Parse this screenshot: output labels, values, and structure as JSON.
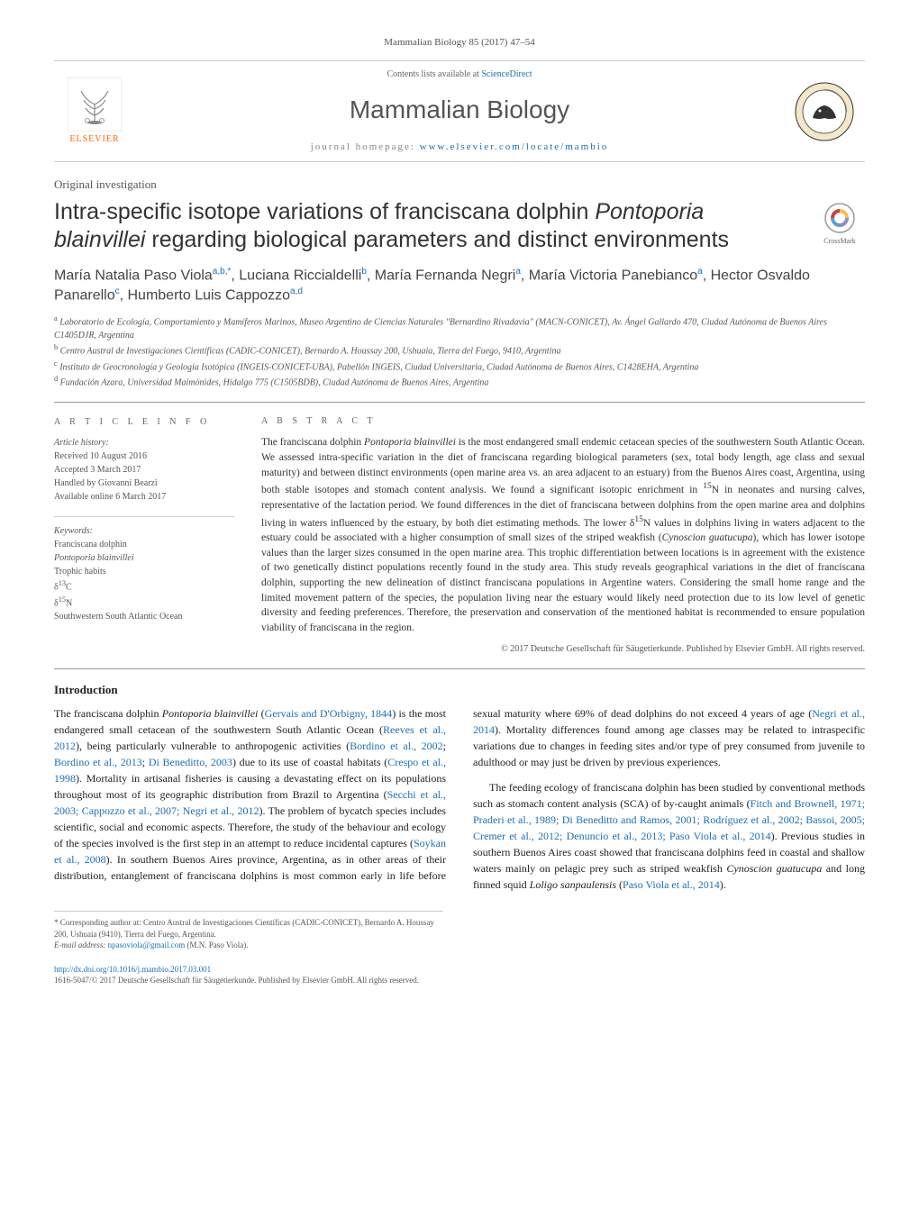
{
  "header": {
    "citation": "Mammalian Biology 85 (2017) 47–54",
    "contents_prefix": "Contents lists available at ",
    "contents_link": "ScienceDirect",
    "journal_name": "Mammalian Biology",
    "homepage_prefix": "journal homepage: ",
    "homepage_link": "www.elsevier.com/locate/mambio",
    "publisher_label": "ELSEVIER"
  },
  "article": {
    "type": "Original investigation",
    "title_html": "Intra-specific isotope variations of franciscana dolphin <em>Pontoporia blainvillei</em> regarding biological parameters and distinct environments",
    "crossmark_label": "CrossMark"
  },
  "authors_html": "María Natalia Paso Viola<sup>a,b,*</sup>, Luciana Riccialdelli<sup>b</sup>, María Fernanda Negri<sup>a</sup>, María Victoria Panebianco<sup>a</sup>, Hector Osvaldo Panarello<sup>c</sup>, Humberto Luis Cappozzo<sup>a,d</sup>",
  "affiliations": [
    "<sup>a</sup> Laboratorio de Ecología, Comportamiento y Mamíferos Marinos, Museo Argentino de Ciencias Naturales \"Bernardino Rivadavia\" (MACN-CONICET), Av. Ángel Gallardo 470, Ciudad Autónoma de Buenos Aires C1405DJR, Argentina",
    "<sup>b</sup> Centro Austral de Investigaciones Científicas (CADIC-CONICET), Bernardo A. Houssay 200, Ushuaia, Tierra del Fuego, 9410, Argentina",
    "<sup>c</sup> Instituto de Geocronología y Geología Isotópica (INGEIS-CONICET-UBA), Pabellón INGEIS, Ciudad Universitaria, Ciudad Autónoma de Buenos Aires, C1428EHA, Argentina",
    "<sup>d</sup> Fundación Azara, Universidad Maimónides, Hidalgo 775 (C1505BDB), Ciudad Autónoma de Buenos Aires, Argentina"
  ],
  "article_info": {
    "heading": "a r t i c l e   i n f o",
    "history_label": "Article history:",
    "history": [
      "Received 10 August 2016",
      "Accepted 3 March 2017",
      "Handled by Giovanni Bearzi",
      "Available online 6 March 2017"
    ],
    "keywords_label": "Keywords:",
    "keywords": [
      "Franciscana dolphin",
      "Pontoporia blainvillei",
      "Trophic habits",
      "δ13C",
      "δ15N",
      "Southwestern South Atlantic Ocean"
    ]
  },
  "abstract": {
    "heading": "a b s t r a c t",
    "text_html": "The franciscana dolphin <em>Pontoporia blainvillei</em> is the most endangered small endemic cetacean species of the southwestern South Atlantic Ocean. We assessed intra-specific variation in the diet of franciscana regarding biological parameters (sex, total body length, age class and sexual maturity) and between distinct environments (open marine area vs. an area adjacent to an estuary) from the Buenos Aires coast, Argentina, using both stable isotopes and stomach content analysis. We found a significant isotopic enrichment in <sup>15</sup>N in neonates and nursing calves, representative of the lactation period. We found differences in the diet of franciscana between dolphins from the open marine area and dolphins living in waters influenced by the estuary, by both diet estimating methods. The lower δ<sup>15</sup>N values in dolphins living in waters adjacent to the estuary could be associated with a higher consumption of small sizes of the striped weakfish (<em>Cynoscion guatucupa</em>), which has lower isotope values than the larger sizes consumed in the open marine area. This trophic differentiation between locations is in agreement with the existence of two genetically distinct populations recently found in the study area. This study reveals geographical variations in the diet of franciscana dolphin, supporting the new delineation of distinct franciscana populations in Argentine waters. Considering the small home range and the limited movement pattern of the species, the population living near the estuary would likely need protection due to its low level of genetic diversity and feeding preferences. Therefore, the preservation and conservation of the mentioned habitat is recommended to ensure population viability of franciscana in the region.",
    "copyright": "© 2017 Deutsche Gesellschaft für Säugetierkunde. Published by Elsevier GmbH. All rights reserved."
  },
  "body": {
    "intro_heading": "Introduction",
    "paragraphs": [
      "The franciscana dolphin <em>Pontoporia blainvillei</em> (<a>Gervais and D'Orbigny, 1844</a>) is the most endangered small cetacean of the southwestern South Atlantic Ocean (<a>Reeves et al., 2012</a>), being particularly vulnerable to anthropogenic activities (<a>Bordino et al., 2002</a>; <a>Bordino et al., 2013</a>; <a>Di Beneditto, 2003</a>) due to its use of coastal habitats (<a>Crespo et al., 1998</a>). Mortality in artisanal fisheries is causing a devastating effect on its populations throughout most of its geographic distribution from Brazil to Argentina (<a>Secchi et al., 2003; Cappozzo et al., 2007; Negri et al., 2012</a>). The problem of bycatch species includes scientific, social and economic aspects. Therefore, the study of the behaviour and ecology of the species involved is the first step in an attempt to reduce incidental captures (<a>Soykan et al., 2008</a>). In southern Buenos Aires province, Argentina, as in other areas of their distribution, entanglement of franciscana dolphins is most common early in life before sexual maturity where 69% of dead dolphins do not exceed 4 years of age (<a>Negri et al., 2014</a>). Mortality differences found among age classes may be related to intraspecific variations due to changes in feeding sites and/or type of prey consumed from juvenile to adulthood or may just be driven by previous experiences.",
      "The feeding ecology of franciscana dolphin has been studied by conventional methods such as stomach content analysis (SCA) of by-caught animals (<a>Fitch and Brownell, 1971; Praderi et al., 1989; Di Beneditto and Ramos, 2001; Rodríguez et al., 2002; Bassoi, 2005; Cremer et al., 2012; Denuncio et al., 2013; Paso Viola et al., 2014</a>). Previous studies in southern Buenos Aires coast showed that franciscana dolphins feed in coastal and shallow waters mainly on pelagic prey such as striped weakfish <em>Cynoscion guatucupa</em> and long finned squid <em>Loligo sanpaulensis</em> (<a>Paso Viola et al., 2014</a>)."
    ]
  },
  "footnote": {
    "corresponding": "* Corresponding author at: Centro Austral de Investigaciones Científicas (CADIC-CONICET), Bernardo A. Houssay 200, Ushuaia (9410), Tierra del Fuego, Argentina.",
    "email_label": "E-mail address: ",
    "email": "npasoviola@gmail.com",
    "email_suffix": " (M.N. Paso Viola)."
  },
  "footer": {
    "doi": "http://dx.doi.org/10.1016/j.mambio.2017.03.001",
    "issn_line": "1616-5047/© 2017 Deutsche Gesellschaft für Säugetierkunde. Published by Elsevier GmbH. All rights reserved."
  },
  "colors": {
    "link": "#1a6fb5",
    "publisher_orange": "#ff6a00",
    "text": "#333333",
    "muted": "#666666"
  }
}
